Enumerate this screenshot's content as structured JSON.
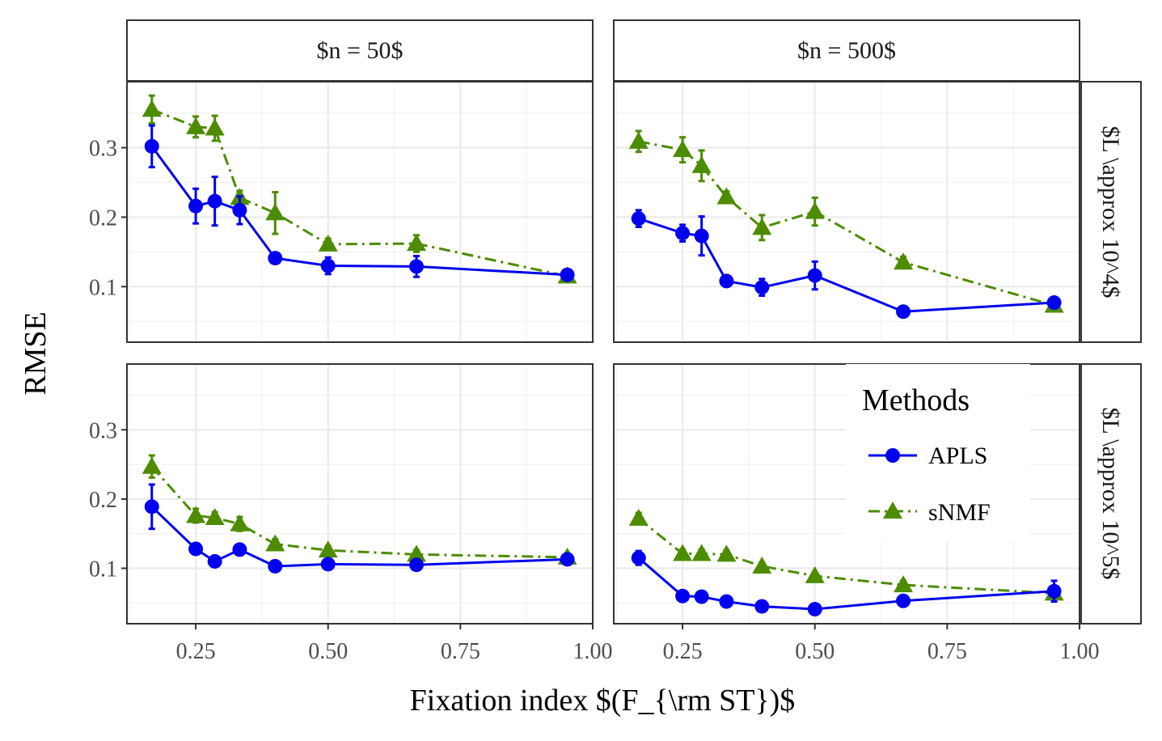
{
  "chart_data": {
    "type": "line",
    "xlabel": "Fixation index $(F_{\\rm ST})$",
    "ylabel": "RMSE",
    "xlim": [
      0.12,
      1.0
    ],
    "ylim": [
      0.02,
      0.395
    ],
    "x_ticks": [
      "0.25",
      "0.50",
      "0.75",
      "1.00"
    ],
    "y_ticks": [
      "0.1",
      "0.2",
      "0.3"
    ],
    "col_labels": [
      "$n = 50$",
      "$n = 500$"
    ],
    "row_labels": [
      "$L \\approx 10^4$",
      "$L \\approx 10^5$"
    ],
    "grid": true,
    "legend": {
      "title": "Methods",
      "placement": "inside-bottom-right",
      "items": [
        {
          "label": "APLS",
          "color": "#0000ee",
          "marker": "circle",
          "linetype": "solid"
        },
        {
          "label": "sNMF",
          "color": "#4d8c00",
          "marker": "triangle",
          "linetype": "dashdot"
        }
      ]
    },
    "x": [
      0.167,
      0.25,
      0.286,
      0.333,
      0.4,
      0.5,
      0.667,
      0.952
    ],
    "panels": [
      {
        "row": 0,
        "col": 0,
        "series": [
          {
            "name": "APLS",
            "values": [
              0.302,
              0.216,
              0.223,
              0.21,
              0.141,
              0.13,
              0.129,
              0.117
            ],
            "errors": [
              0.03,
              0.025,
              0.035,
              0.02,
              0.006,
              0.012,
              0.015,
              0.006
            ]
          },
          {
            "name": "sNMF",
            "values": [
              0.355,
              0.33,
              0.328,
              0.228,
              0.206,
              0.161,
              0.162,
              0.115
            ],
            "errors": [
              0.02,
              0.015,
              0.018,
              0.01,
              0.03,
              0.008,
              0.012,
              0.005
            ]
          }
        ]
      },
      {
        "row": 0,
        "col": 1,
        "series": [
          {
            "name": "APLS",
            "values": [
              0.198,
              0.177,
              0.173,
              0.108,
              0.099,
              0.116,
              0.064,
              0.077
            ],
            "errors": [
              0.012,
              0.012,
              0.028,
              0.006,
              0.012,
              0.02,
              0.005,
              0.005
            ]
          },
          {
            "name": "sNMF",
            "values": [
              0.309,
              0.297,
              0.274,
              0.229,
              0.185,
              0.208,
              0.135,
              0.073
            ],
            "errors": [
              0.015,
              0.018,
              0.022,
              0.008,
              0.018,
              0.02,
              0.008,
              0.005
            ]
          }
        ]
      },
      {
        "row": 1,
        "col": 0,
        "series": [
          {
            "name": "APLS",
            "values": [
              0.189,
              0.128,
              0.11,
              0.127,
              0.103,
              0.106,
              0.105,
              0.113
            ],
            "errors": [
              0.032,
              0.006,
              0.006,
              0.006,
              0.005,
              0.005,
              0.005,
              0.005
            ]
          },
          {
            "name": "sNMF",
            "values": [
              0.247,
              0.176,
              0.173,
              0.164,
              0.135,
              0.126,
              0.12,
              0.116
            ],
            "errors": [
              0.016,
              0.01,
              0.008,
              0.01,
              0.007,
              0.006,
              0.006,
              0.005
            ]
          }
        ]
      },
      {
        "row": 1,
        "col": 1,
        "series": [
          {
            "name": "APLS",
            "values": [
              0.115,
              0.06,
              0.059,
              0.052,
              0.045,
              0.041,
              0.053,
              0.067
            ],
            "errors": [
              0.01,
              0.004,
              0.004,
              0.004,
              0.004,
              0.004,
              0.004,
              0.015
            ]
          },
          {
            "name": "sNMF",
            "values": [
              0.172,
              0.121,
              0.121,
              0.12,
              0.103,
              0.089,
              0.076,
              0.064
            ],
            "errors": [
              0.008,
              0.006,
              0.006,
              0.006,
              0.005,
              0.005,
              0.006,
              0.005
            ]
          }
        ]
      }
    ]
  }
}
